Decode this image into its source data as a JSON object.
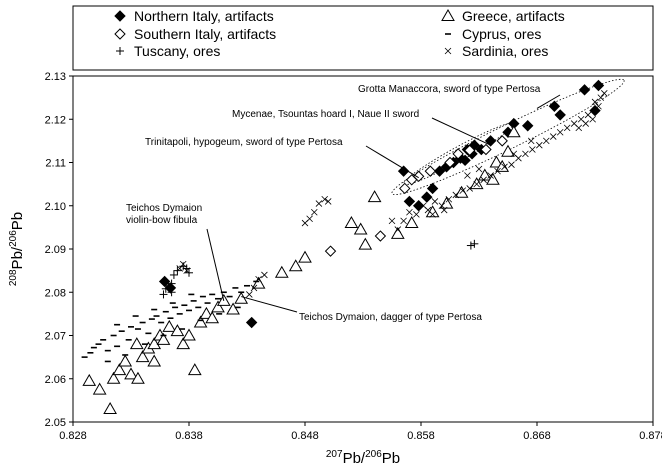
{
  "chart_data": {
    "type": "scatter",
    "xlabel": {
      "pre": "207",
      "main": "Pb/",
      "pre2": "206",
      "main2": "Pb"
    },
    "ylabel": {
      "pre": "208",
      "main": "Pb/",
      "pre2": "206",
      "main2": "Pb"
    },
    "xlim": [
      0.828,
      0.878
    ],
    "ylim": [
      2.05,
      2.13
    ],
    "xticks": [
      "0.828",
      "0.838",
      "0.848",
      "0.858",
      "0.868",
      "0.878"
    ],
    "yticks": [
      "2.05",
      "2.06",
      "2.07",
      "2.08",
      "2.09",
      "2.10",
      "2.11",
      "2.12",
      "2.13"
    ],
    "legend_position": "top",
    "series": [
      {
        "name": "Northern Italy, artifacts",
        "marker": "diamond-filled",
        "points": [
          [
            0.8359,
            2.0825
          ],
          [
            0.8364,
            2.081
          ],
          [
            0.8434,
            2.073
          ],
          [
            0.8565,
            2.108
          ],
          [
            0.857,
            2.101
          ],
          [
            0.8578,
            2.1
          ],
          [
            0.8585,
            2.102
          ],
          [
            0.859,
            2.104
          ],
          [
            0.8596,
            2.108
          ],
          [
            0.8602,
            2.109
          ],
          [
            0.8608,
            2.11
          ],
          [
            0.8614,
            2.111
          ],
          [
            0.862,
            2.113
          ],
          [
            0.8626,
            2.114
          ],
          [
            0.8632,
            2.113
          ],
          [
            0.864,
            2.115
          ],
          [
            0.8655,
            2.117
          ],
          [
            0.866,
            2.119
          ],
          [
            0.8672,
            2.1185
          ],
          [
            0.8695,
            2.123
          ],
          [
            0.87,
            2.121
          ],
          [
            0.8721,
            2.1268
          ],
          [
            0.8733,
            2.1278
          ],
          [
            0.873,
            2.122
          ],
          [
            0.8618,
            2.1105
          ],
          [
            0.8624,
            2.112
          ]
        ]
      },
      {
        "name": "Southern Italy, artifacts",
        "marker": "diamond-open",
        "points": [
          [
            0.8502,
            2.0895
          ],
          [
            0.8566,
            2.104
          ],
          [
            0.8572,
            2.106
          ],
          [
            0.8578,
            2.1068
          ],
          [
            0.8588,
            2.108
          ],
          [
            0.8605,
            2.11
          ],
          [
            0.8612,
            2.112
          ],
          [
            0.8622,
            2.1128
          ],
          [
            0.8636,
            2.113
          ],
          [
            0.865,
            2.115
          ],
          [
            0.8545,
            2.093
          ]
        ]
      },
      {
        "name": "Tuscany, ores",
        "marker": "plus",
        "points": [
          [
            0.8358,
            2.0795
          ],
          [
            0.836,
            2.0808
          ],
          [
            0.8362,
            2.0815
          ],
          [
            0.8365,
            2.082
          ],
          [
            0.8367,
            2.084
          ],
          [
            0.837,
            2.085
          ],
          [
            0.8375,
            2.086
          ],
          [
            0.8378,
            2.0855
          ],
          [
            0.838,
            2.0845
          ],
          [
            0.8365,
            2.08
          ],
          [
            0.8623,
            2.0908
          ],
          [
            0.8626,
            2.0912
          ]
        ]
      },
      {
        "name": "Greece, artifacts",
        "marker": "triangle-open",
        "points": [
          [
            0.8294,
            2.0595
          ],
          [
            0.8303,
            2.0575
          ],
          [
            0.8312,
            2.053
          ],
          [
            0.8315,
            2.06
          ],
          [
            0.832,
            2.062
          ],
          [
            0.8325,
            2.064
          ],
          [
            0.833,
            2.061
          ],
          [
            0.8335,
            2.068
          ],
          [
            0.834,
            2.065
          ],
          [
            0.8345,
            2.067
          ],
          [
            0.835,
            2.068
          ],
          [
            0.8355,
            2.07
          ],
          [
            0.8358,
            2.069
          ],
          [
            0.8363,
            2.072
          ],
          [
            0.837,
            2.071
          ],
          [
            0.8375,
            2.068
          ],
          [
            0.838,
            2.07
          ],
          [
            0.8385,
            2.062
          ],
          [
            0.839,
            2.073
          ],
          [
            0.8395,
            2.075
          ],
          [
            0.84,
            2.074
          ],
          [
            0.8405,
            2.0765
          ],
          [
            0.841,
            2.078
          ],
          [
            0.8418,
            2.076
          ],
          [
            0.8425,
            2.0785
          ],
          [
            0.844,
            2.082
          ],
          [
            0.846,
            2.0845
          ],
          [
            0.8472,
            2.086
          ],
          [
            0.848,
            2.088
          ],
          [
            0.852,
            2.096
          ],
          [
            0.8528,
            2.0945
          ],
          [
            0.8532,
            2.091
          ],
          [
            0.854,
            2.102
          ],
          [
            0.856,
            2.0935
          ],
          [
            0.8572,
            2.096
          ],
          [
            0.859,
            2.0985
          ],
          [
            0.8602,
            2.1005
          ],
          [
            0.8615,
            2.103
          ],
          [
            0.8628,
            2.105
          ],
          [
            0.8635,
            2.107
          ],
          [
            0.8645,
            2.11
          ],
          [
            0.8655,
            2.1125
          ],
          [
            0.866,
            2.117
          ],
          [
            0.8642,
            2.106
          ],
          [
            0.865,
            2.109
          ],
          [
            0.8336,
            2.06
          ],
          [
            0.835,
            2.064
          ]
        ]
      },
      {
        "name": "Cyprus, ores",
        "marker": "dash",
        "points": [
          [
            0.829,
            2.065
          ],
          [
            0.8295,
            2.066
          ],
          [
            0.8298,
            2.0672
          ],
          [
            0.8302,
            2.068
          ],
          [
            0.8306,
            2.069
          ],
          [
            0.831,
            2.0665
          ],
          [
            0.8315,
            2.07
          ],
          [
            0.8318,
            2.0675
          ],
          [
            0.8322,
            2.071
          ],
          [
            0.8328,
            2.069
          ],
          [
            0.833,
            2.072
          ],
          [
            0.8336,
            2.0715
          ],
          [
            0.834,
            2.073
          ],
          [
            0.8345,
            2.0705
          ],
          [
            0.8348,
            2.0738
          ],
          [
            0.8352,
            2.0745
          ],
          [
            0.8356,
            2.073
          ],
          [
            0.836,
            2.0755
          ],
          [
            0.8364,
            2.074
          ],
          [
            0.8368,
            2.0765
          ],
          [
            0.8372,
            2.075
          ],
          [
            0.8376,
            2.077
          ],
          [
            0.838,
            2.0758
          ],
          [
            0.8384,
            2.078
          ],
          [
            0.8388,
            2.0765
          ],
          [
            0.8392,
            2.079
          ],
          [
            0.8396,
            2.0775
          ],
          [
            0.84,
            2.0795
          ],
          [
            0.8405,
            2.0785
          ],
          [
            0.841,
            2.08
          ],
          [
            0.8415,
            2.079
          ],
          [
            0.842,
            2.081
          ],
          [
            0.8425,
            2.08
          ],
          [
            0.843,
            2.0815
          ],
          [
            0.8438,
            2.0825
          ],
          [
            0.831,
            2.064
          ],
          [
            0.8325,
            2.0655
          ],
          [
            0.8342,
            2.068
          ],
          [
            0.8358,
            2.07
          ],
          [
            0.8374,
            2.0715
          ],
          [
            0.839,
            2.0735
          ],
          [
            0.8406,
            2.075
          ],
          [
            0.8422,
            2.0765
          ],
          [
            0.8318,
            2.0725
          ],
          [
            0.8334,
            2.0745
          ],
          [
            0.835,
            2.076
          ],
          [
            0.8366,
            2.0775
          ],
          [
            0.8382,
            2.0795
          ]
        ]
      },
      {
        "name": "Sardinia, ores",
        "marker": "x",
        "points": [
          [
            0.8372,
            2.0855
          ],
          [
            0.8375,
            2.0865
          ],
          [
            0.8378,
            2.085
          ],
          [
            0.8432,
            2.0795
          ],
          [
            0.8436,
            2.081
          ],
          [
            0.844,
            2.083
          ],
          [
            0.8445,
            2.084
          ],
          [
            0.8488,
            2.0985
          ],
          [
            0.8492,
            2.1005
          ],
          [
            0.8497,
            2.1015
          ],
          [
            0.85,
            2.101
          ],
          [
            0.8555,
            2.0965
          ],
          [
            0.856,
            2.0945
          ],
          [
            0.8565,
            2.0965
          ],
          [
            0.857,
            2.0985
          ],
          [
            0.8576,
            2.098
          ],
          [
            0.8582,
            2.1
          ],
          [
            0.8586,
            2.099
          ],
          [
            0.8592,
            2.101
          ],
          [
            0.8598,
            2.1
          ],
          [
            0.8604,
            2.1015
          ],
          [
            0.861,
            2.1025
          ],
          [
            0.8616,
            2.1035
          ],
          [
            0.8622,
            2.104
          ],
          [
            0.8628,
            2.105
          ],
          [
            0.8634,
            2.106
          ],
          [
            0.864,
            2.107
          ],
          [
            0.8646,
            2.108
          ],
          [
            0.8652,
            2.109
          ],
          [
            0.8658,
            2.1095
          ],
          [
            0.8664,
            2.111
          ],
          [
            0.867,
            2.112
          ],
          [
            0.8676,
            2.113
          ],
          [
            0.8682,
            2.114
          ],
          [
            0.8688,
            2.115
          ],
          [
            0.8694,
            2.116
          ],
          [
            0.87,
            2.117
          ],
          [
            0.8706,
            2.118
          ],
          [
            0.8712,
            2.119
          ],
          [
            0.8718,
            2.12
          ],
          [
            0.8724,
            2.121
          ],
          [
            0.873,
            2.124
          ],
          [
            0.8735,
            2.125
          ],
          [
            0.8738,
            2.126
          ],
          [
            0.8733,
            2.123
          ],
          [
            0.8728,
            2.12
          ],
          [
            0.8722,
            2.119
          ],
          [
            0.8716,
            2.118
          ],
          [
            0.862,
            2.107
          ],
          [
            0.863,
            2.1085
          ],
          [
            0.866,
            2.112
          ],
          [
            0.8675,
            2.115
          ],
          [
            0.859,
            2.098
          ],
          [
            0.86,
            2.099
          ],
          [
            0.848,
            2.096
          ],
          [
            0.8484,
            2.097
          ]
        ]
      }
    ],
    "annotations": [
      {
        "text": "Grotta Manaccora, sword of type Pertosa",
        "x": 0.868,
        "y": 2.1225
      },
      {
        "text": "Mycenae, Tsountas hoard I, Naue II sword",
        "x": 0.864,
        "y": 2.114
      },
      {
        "text": "Trinitapoli, hypogeum, sword of type Pertosa",
        "x": 0.8578,
        "y": 2.1065
      },
      {
        "text": "Teichos Dymaion",
        "text2": "violin-bow fibula",
        "x": 0.841,
        "y": 2.078
      },
      {
        "text": "Teichos Dymaion, dagger of type Pertosa",
        "x": 0.8425,
        "y": 2.079
      }
    ]
  }
}
